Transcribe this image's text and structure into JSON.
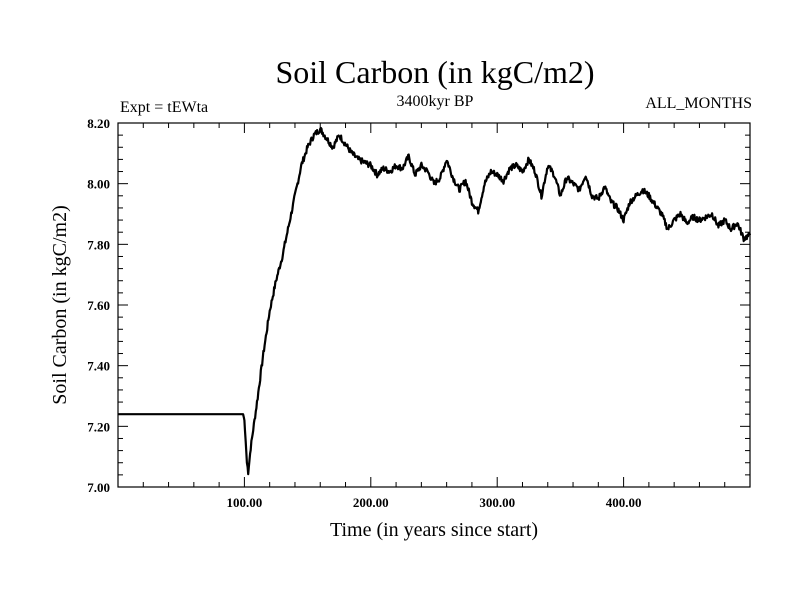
{
  "chart_data": {
    "type": "line",
    "title": "Soil Carbon (in kgC/m2)",
    "subtitle_left": "Expt = tEWta",
    "subtitle_center": "3400kyr BP",
    "subtitle_right": "ALL_MONTHS",
    "xlabel": "Time (in years since start)",
    "ylabel": "Soil Carbon (in kgC/m2)",
    "xlim": [
      0,
      500
    ],
    "ylim": [
      7.0,
      8.2
    ],
    "xticks": [
      100,
      200,
      300,
      400
    ],
    "xtick_labels": [
      "100.00",
      "200.00",
      "300.00",
      "400.00"
    ],
    "yticks": [
      7.0,
      7.2,
      7.4,
      7.6,
      7.8,
      8.0,
      8.2
    ],
    "ytick_labels": [
      "7.00",
      "7.20",
      "7.40",
      "7.60",
      "7.80",
      "8.00",
      "8.20"
    ],
    "grid": false,
    "series": [
      {
        "name": "Soil Carbon",
        "color": "#000000",
        "x": [
          0,
          99,
          100,
          101,
          102,
          103,
          105,
          110,
          115,
          120,
          125,
          130,
          135,
          140,
          145,
          150,
          155,
          160,
          165,
          170,
          175,
          180,
          185,
          190,
          195,
          200,
          205,
          210,
          215,
          220,
          225,
          230,
          235,
          240,
          245,
          250,
          255,
          260,
          265,
          270,
          275,
          280,
          285,
          290,
          295,
          300,
          305,
          310,
          315,
          320,
          325,
          330,
          335,
          340,
          345,
          350,
          355,
          360,
          365,
          370,
          375,
          380,
          385,
          390,
          395,
          400,
          405,
          410,
          415,
          420,
          425,
          430,
          435,
          440,
          445,
          450,
          455,
          460,
          465,
          470,
          475,
          480,
          485,
          490,
          495,
          500
        ],
        "values": [
          7.24,
          7.24,
          7.22,
          7.15,
          7.08,
          7.05,
          7.13,
          7.28,
          7.44,
          7.58,
          7.68,
          7.76,
          7.86,
          7.96,
          8.06,
          8.12,
          8.16,
          8.18,
          8.15,
          8.12,
          8.16,
          8.13,
          8.1,
          8.08,
          8.07,
          8.06,
          8.03,
          8.05,
          8.04,
          8.06,
          8.05,
          8.09,
          8.03,
          8.06,
          8.04,
          8.0,
          8.02,
          8.08,
          8.02,
          7.98,
          8.01,
          7.94,
          7.91,
          8.0,
          8.04,
          8.03,
          8.01,
          8.05,
          8.06,
          8.04,
          8.08,
          8.04,
          7.96,
          8.06,
          8.03,
          7.96,
          8.02,
          8.0,
          7.98,
          8.03,
          7.96,
          7.95,
          7.99,
          7.94,
          7.92,
          7.88,
          7.94,
          7.96,
          7.98,
          7.96,
          7.93,
          7.9,
          7.85,
          7.88,
          7.9,
          7.87,
          7.89,
          7.88,
          7.89,
          7.9,
          7.86,
          7.88,
          7.85,
          7.87,
          7.82,
          7.83
        ]
      }
    ]
  }
}
